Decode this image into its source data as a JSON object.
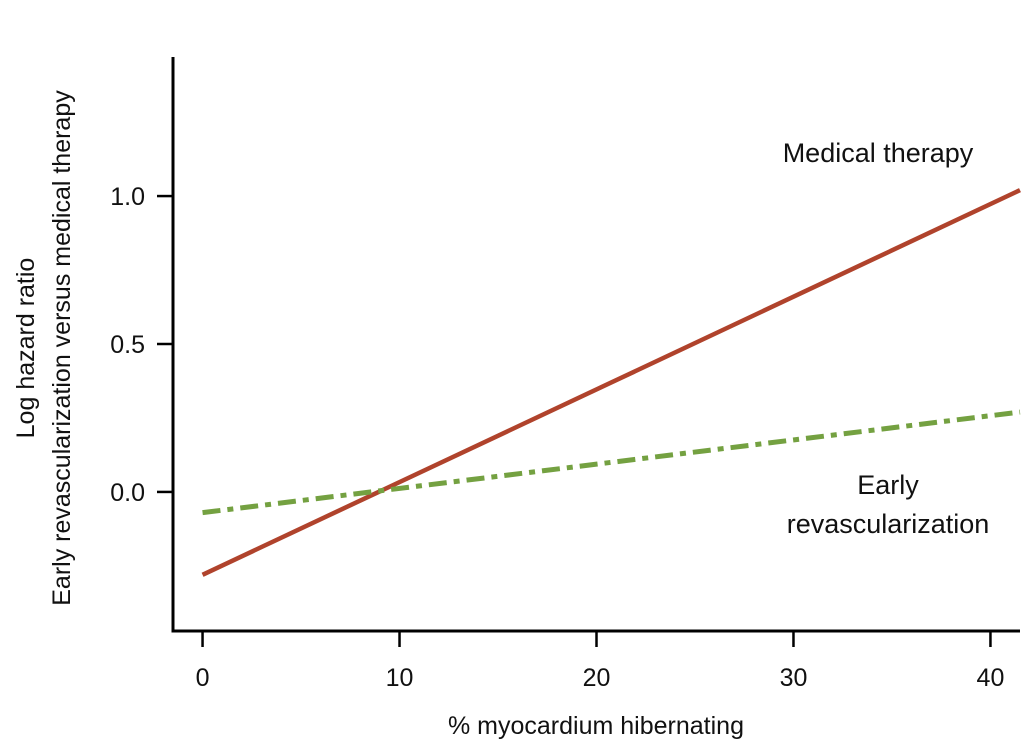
{
  "chart_data": {
    "type": "line",
    "title": "",
    "xlabel": "% myocardium hibernating",
    "ylabel": [
      "Log hazard ratio",
      "Early revascularization versus medical therapy"
    ],
    "xlim": [
      -1.5,
      41.5
    ],
    "ylim": [
      -0.47,
      1.47
    ],
    "xticks": [
      0,
      10,
      20,
      30,
      40
    ],
    "xtick_labels": [
      "0",
      "10",
      "20",
      "30",
      "40"
    ],
    "yticks": [
      0.0,
      0.5,
      1.0
    ],
    "ytick_labels": [
      "0.0",
      "0.5",
      "1.0"
    ],
    "grid": false,
    "series": [
      {
        "name": "Medical therapy",
        "style": "solid",
        "color": "#B0432C",
        "x": [
          0,
          41.5
        ],
        "y": [
          -0.28,
          1.02
        ]
      },
      {
        "name": "Early revascularization",
        "style": "dashdot",
        "color": "#74A141",
        "x": [
          0,
          41.5
        ],
        "y": [
          -0.07,
          0.27
        ]
      }
    ],
    "annotations": [
      {
        "lines": [
          "Medical therapy"
        ],
        "series": "Medical therapy"
      },
      {
        "lines": [
          "Early",
          "revascularization"
        ],
        "series": "Early revascularization"
      }
    ]
  }
}
